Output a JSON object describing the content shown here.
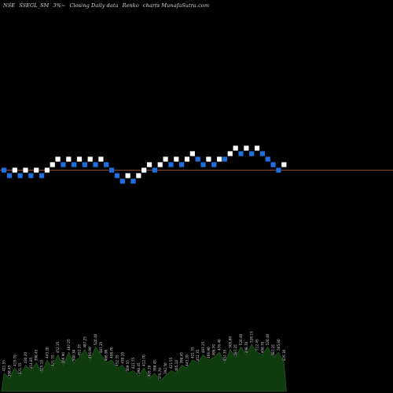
{
  "header": {
    "exchange": "NSE",
    "symbol": "SSEGL_SM",
    "box_size": "3%~",
    "data_type": "Closing Daily data",
    "chart_kind": "Renko",
    "site": "charts MunafaSutra.com"
  },
  "colors": {
    "background": "#000000",
    "up_brick": "#ffffff",
    "down_brick": "#1e6fe0",
    "reference_line": "#8b4a2a",
    "volume_fill": "#0f3b0f",
    "volume_line": "#2a6a2a",
    "volume_label": "#d0d0d0"
  },
  "chart_data": {
    "type": "renko",
    "bricks": [
      {
        "dir": "down",
        "level": 0
      },
      {
        "dir": "down",
        "level": -1
      },
      {
        "dir": "up",
        "level": 0
      },
      {
        "dir": "down",
        "level": -1
      },
      {
        "dir": "up",
        "level": 0
      },
      {
        "dir": "down",
        "level": -1
      },
      {
        "dir": "up",
        "level": 0
      },
      {
        "dir": "down",
        "level": -1
      },
      {
        "dir": "up",
        "level": 0
      },
      {
        "dir": "up",
        "level": 1
      },
      {
        "dir": "up",
        "level": 2
      },
      {
        "dir": "down",
        "level": 1
      },
      {
        "dir": "up",
        "level": 2
      },
      {
        "dir": "down",
        "level": 1
      },
      {
        "dir": "up",
        "level": 2
      },
      {
        "dir": "down",
        "level": 1
      },
      {
        "dir": "up",
        "level": 2
      },
      {
        "dir": "down",
        "level": 1
      },
      {
        "dir": "up",
        "level": 2
      },
      {
        "dir": "down",
        "level": 1
      },
      {
        "dir": "down",
        "level": 0
      },
      {
        "dir": "down",
        "level": -1
      },
      {
        "dir": "down",
        "level": -2
      },
      {
        "dir": "up",
        "level": -1
      },
      {
        "dir": "down",
        "level": -2
      },
      {
        "dir": "up",
        "level": -1
      },
      {
        "dir": "up",
        "level": 0
      },
      {
        "dir": "up",
        "level": 1
      },
      {
        "dir": "down",
        "level": 0
      },
      {
        "dir": "up",
        "level": 1
      },
      {
        "dir": "up",
        "level": 2
      },
      {
        "dir": "down",
        "level": 1
      },
      {
        "dir": "up",
        "level": 2
      },
      {
        "dir": "down",
        "level": 1
      },
      {
        "dir": "up",
        "level": 2
      },
      {
        "dir": "up",
        "level": 3
      },
      {
        "dir": "down",
        "level": 2
      },
      {
        "dir": "down",
        "level": 1
      },
      {
        "dir": "up",
        "level": 2
      },
      {
        "dir": "down",
        "level": 1
      },
      {
        "dir": "up",
        "level": 2
      },
      {
        "dir": "down",
        "level": 2
      },
      {
        "dir": "up",
        "level": 3
      },
      {
        "dir": "up",
        "level": 4
      },
      {
        "dir": "down",
        "level": 3
      },
      {
        "dir": "up",
        "level": 4
      },
      {
        "dir": "down",
        "level": 3
      },
      {
        "dir": "up",
        "level": 4
      },
      {
        "dir": "down",
        "level": 3
      },
      {
        "dir": "down",
        "level": 2
      },
      {
        "dir": "down",
        "level": 1
      },
      {
        "dir": "down",
        "level": 0
      },
      {
        "dir": "up",
        "level": 1
      }
    ],
    "reference_level": 0,
    "volume": {
      "labels": [
        "421.55",
        "398.45",
        "419.70",
        "421.55",
        "430.20",
        "414.85",
        "398.45",
        "425.10",
        "443.20",
        "421.55",
        "452.35",
        "466.90",
        "487.25",
        "500.30",
        "452.35",
        "487.25",
        "466.90",
        "520.40",
        "487.25",
        "466.90",
        "498.70",
        "452.35",
        "430.20",
        "409.55",
        "421.55",
        "398.45",
        "412.70",
        "405.10",
        "398.45",
        "375.70",
        "392.50",
        "421.55",
        "405.10",
        "398.45",
        "443.20",
        "421.55",
        "452.35",
        "487.25",
        "466.90",
        "498.70",
        "476.40",
        "452.35",
        "505.80",
        "487.25",
        "520.40",
        "498.70",
        "536.15",
        "512.45",
        "498.70",
        "520.40",
        "487.25",
        "505.80",
        "476.30"
      ],
      "values": [
        0.35,
        0.25,
        0.45,
        0.3,
        0.5,
        0.4,
        0.55,
        0.35,
        0.6,
        0.45,
        0.7,
        0.5,
        0.75,
        0.55,
        0.65,
        0.8,
        0.6,
        0.85,
        0.7,
        0.55,
        0.6,
        0.45,
        0.5,
        0.35,
        0.4,
        0.3,
        0.45,
        0.25,
        0.35,
        0.2,
        0.3,
        0.4,
        0.35,
        0.5,
        0.45,
        0.6,
        0.55,
        0.7,
        0.6,
        0.65,
        0.75,
        0.55,
        0.8,
        0.65,
        0.85,
        0.7,
        0.9,
        0.75,
        0.7,
        0.85,
        0.65,
        0.75,
        0.55
      ]
    }
  }
}
